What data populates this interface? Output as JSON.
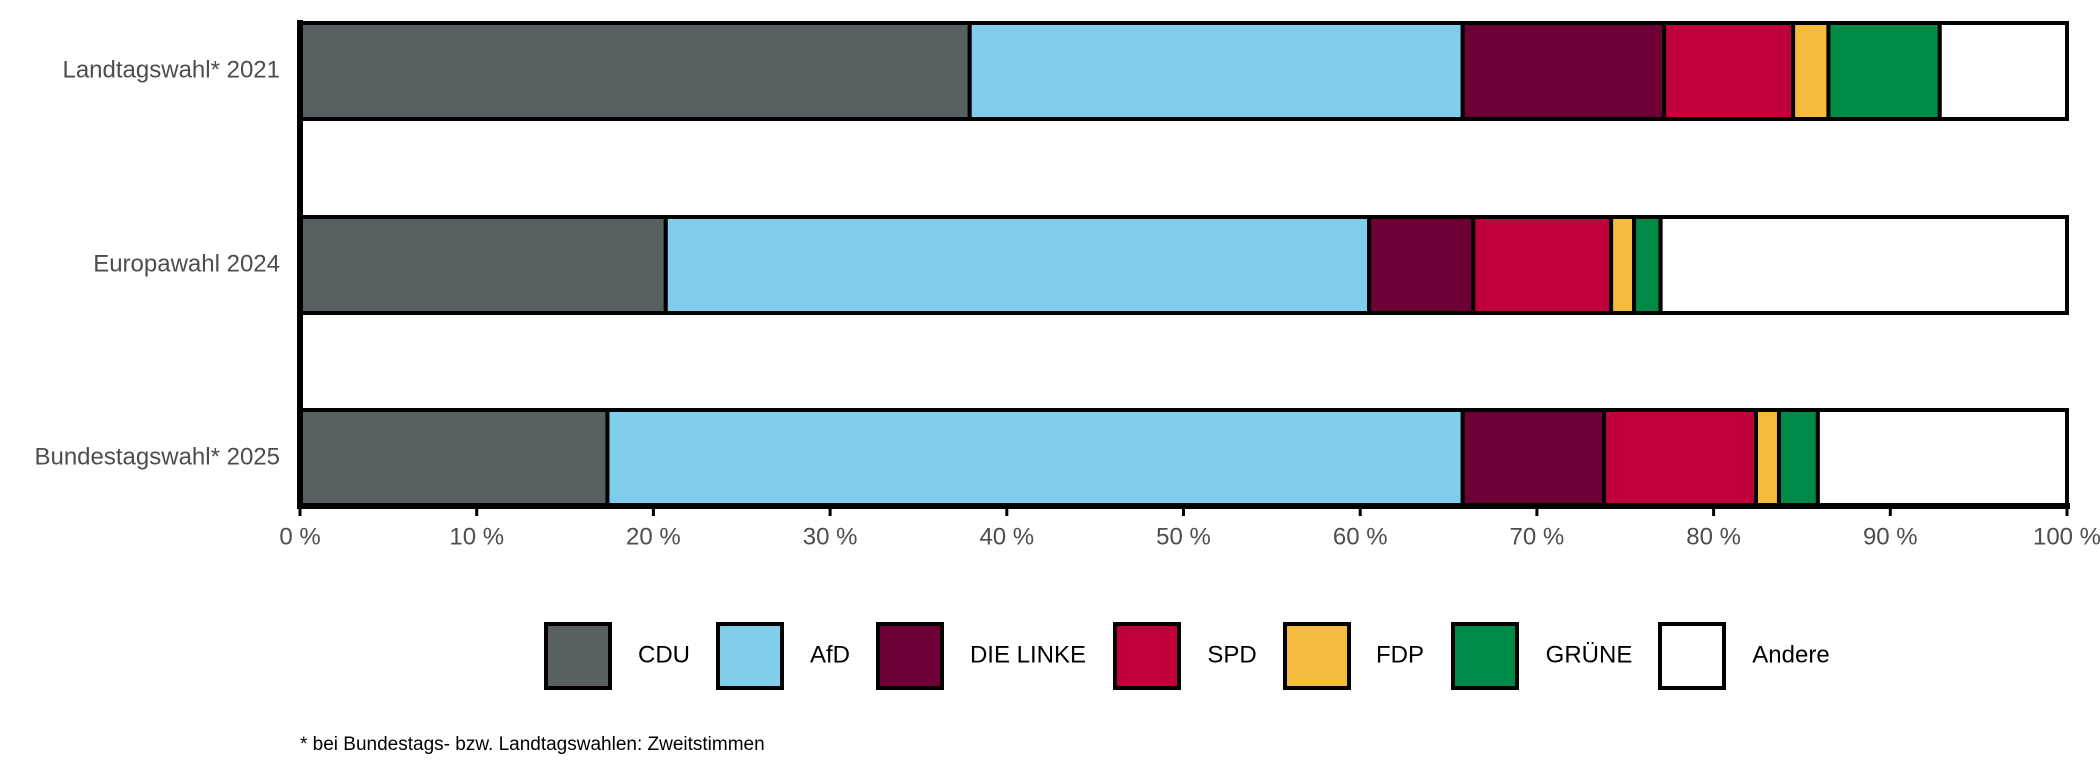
{
  "chart_data": {
    "type": "stacked-bar-horizontal",
    "categories": [
      "Landtagswahl* 2021",
      "Europawahl 2024",
      "Bundestagswahl* 2025"
    ],
    "series": [
      {
        "name": "CDU",
        "color": "#575f60",
        "values": [
          37.9,
          20.7,
          17.4
        ]
      },
      {
        "name": "AfD",
        "color": "#81cdec",
        "values": [
          27.9,
          39.8,
          48.4
        ]
      },
      {
        "name": "DIE LINKE",
        "color": "#6d0035",
        "values": [
          11.4,
          5.9,
          8.0
        ]
      },
      {
        "name": "SPD",
        "color": "#c0003a",
        "values": [
          7.3,
          7.8,
          8.6
        ]
      },
      {
        "name": "FDP",
        "color": "#f5bb3e",
        "values": [
          2.0,
          1.3,
          1.3
        ]
      },
      {
        "name": "GRÜNE",
        "color": "#008a47",
        "values": [
          6.3,
          1.5,
          2.2
        ]
      },
      {
        "name": "Andere",
        "color": "#ffffff",
        "values": [
          7.2,
          23.0,
          14.1
        ]
      }
    ],
    "xlim": [
      0,
      100
    ],
    "xticks": [
      {
        "value": 0,
        "label": "0 %"
      },
      {
        "value": 10,
        "label": "10 %"
      },
      {
        "value": 20,
        "label": "20 %"
      },
      {
        "value": 30,
        "label": "30 %"
      },
      {
        "value": 40,
        "label": "40 %"
      },
      {
        "value": 50,
        "label": "50 %"
      },
      {
        "value": 60,
        "label": "60 %"
      },
      {
        "value": 70,
        "label": "70 %"
      },
      {
        "value": 80,
        "label": "80 %"
      },
      {
        "value": 90,
        "label": "90 %"
      },
      {
        "value": 100,
        "label": "100 %"
      }
    ],
    "legend": "bottom",
    "footnote": "* bei Bundestags- bzw. Landtagswahlen: Zweitstimmen"
  }
}
